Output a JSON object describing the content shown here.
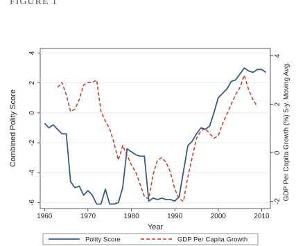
{
  "figure_label": "FIGURE 1",
  "chart_data": {
    "type": "line",
    "xlabel": "Year",
    "ylabel_left": "Combined Polity Score",
    "ylabel_right": "GDP Per Capita Growth (%) 5-y. Moving Avg.",
    "xlim": [
      1959,
      2012
    ],
    "ylim_left": [
      -6.4,
      4.3
    ],
    "ylim_right": [
      -2.3,
      4.3
    ],
    "xticks": [
      1960,
      1970,
      1980,
      1990,
      2000,
      2010
    ],
    "yticks_left": [
      -6,
      -4,
      -2,
      0,
      2,
      4
    ],
    "ytick_labels_left": [
      "-6",
      "-4",
      "-2",
      "0",
      "2",
      "4"
    ],
    "yticks_right": [
      -2,
      0,
      2,
      4
    ],
    "ytick_labels_right": [
      "-2",
      "0",
      "2",
      "4"
    ],
    "legend_position": "bottom",
    "series": [
      {
        "name": "Polity Score",
        "axis": "left",
        "color": "#3b5b7e",
        "dash": "solid",
        "x": [
          1960,
          1961,
          1962,
          1963,
          1964,
          1965,
          1966,
          1967,
          1968,
          1969,
          1970,
          1971,
          1972,
          1973,
          1974,
          1975,
          1976,
          1977,
          1978,
          1979,
          1980,
          1981,
          1982,
          1983,
          1984,
          1985,
          1986,
          1987,
          1988,
          1989,
          1990,
          1991,
          1992,
          1993,
          1994,
          1995,
          1996,
          1997,
          1998,
          1999,
          2000,
          2001,
          2002,
          2003,
          2004,
          2005,
          2006,
          2007,
          2008,
          2009,
          2010,
          2011
        ],
        "y": [
          -0.7,
          -1.0,
          -0.8,
          -1.1,
          -1.4,
          -1.4,
          -4.6,
          -5.0,
          -4.9,
          -5.5,
          -5.2,
          -5.5,
          -6.1,
          -6.1,
          -5.1,
          -6.1,
          -6.1,
          -6.0,
          -5.0,
          -2.4,
          -2.6,
          -2.8,
          -2.9,
          -2.9,
          -5.9,
          -5.7,
          -5.8,
          -5.7,
          -5.8,
          -5.8,
          -5.9,
          -5.6,
          -3.9,
          -2.2,
          -1.9,
          -1.4,
          -1.0,
          -1.1,
          -0.9,
          0.0,
          1.0,
          1.3,
          1.6,
          2.1,
          2.2,
          2.6,
          3.0,
          2.8,
          2.7,
          2.9,
          2.9,
          2.7
        ]
      },
      {
        "name": "GDP Per Capita Growth",
        "axis": "right",
        "color": "#c0392b",
        "dash": "dashed",
        "x": [
          1963,
          1964,
          1965,
          1966,
          1967,
          1968,
          1969,
          1970,
          1971,
          1972,
          1973,
          1974,
          1975,
          1976,
          1977,
          1978,
          1979,
          1980,
          1981,
          1982,
          1983,
          1984,
          1985,
          1986,
          1987,
          1988,
          1989,
          1990,
          1991,
          1992,
          1993,
          1994,
          1995,
          1996,
          1997,
          1998,
          1999,
          2000,
          2001,
          2002,
          2003,
          2004,
          2005,
          2006,
          2007,
          2008,
          2009
        ],
        "y": [
          2.7,
          2.9,
          2.4,
          1.7,
          1.8,
          2.2,
          2.8,
          2.9,
          2.9,
          3.0,
          1.7,
          1.3,
          1.0,
          0.4,
          -0.3,
          0.3,
          -0.1,
          -0.5,
          -0.8,
          -1.3,
          -1.8,
          -1.9,
          -0.9,
          -0.3,
          -0.2,
          -0.4,
          -0.8,
          -1.5,
          -1.9,
          -2.0,
          -1.0,
          -0.2,
          0.6,
          0.9,
          1.0,
          0.8,
          0.6,
          0.7,
          1.2,
          1.6,
          2.0,
          2.4,
          2.7,
          3.2,
          2.6,
          2.2,
          1.9
        ]
      }
    ]
  }
}
